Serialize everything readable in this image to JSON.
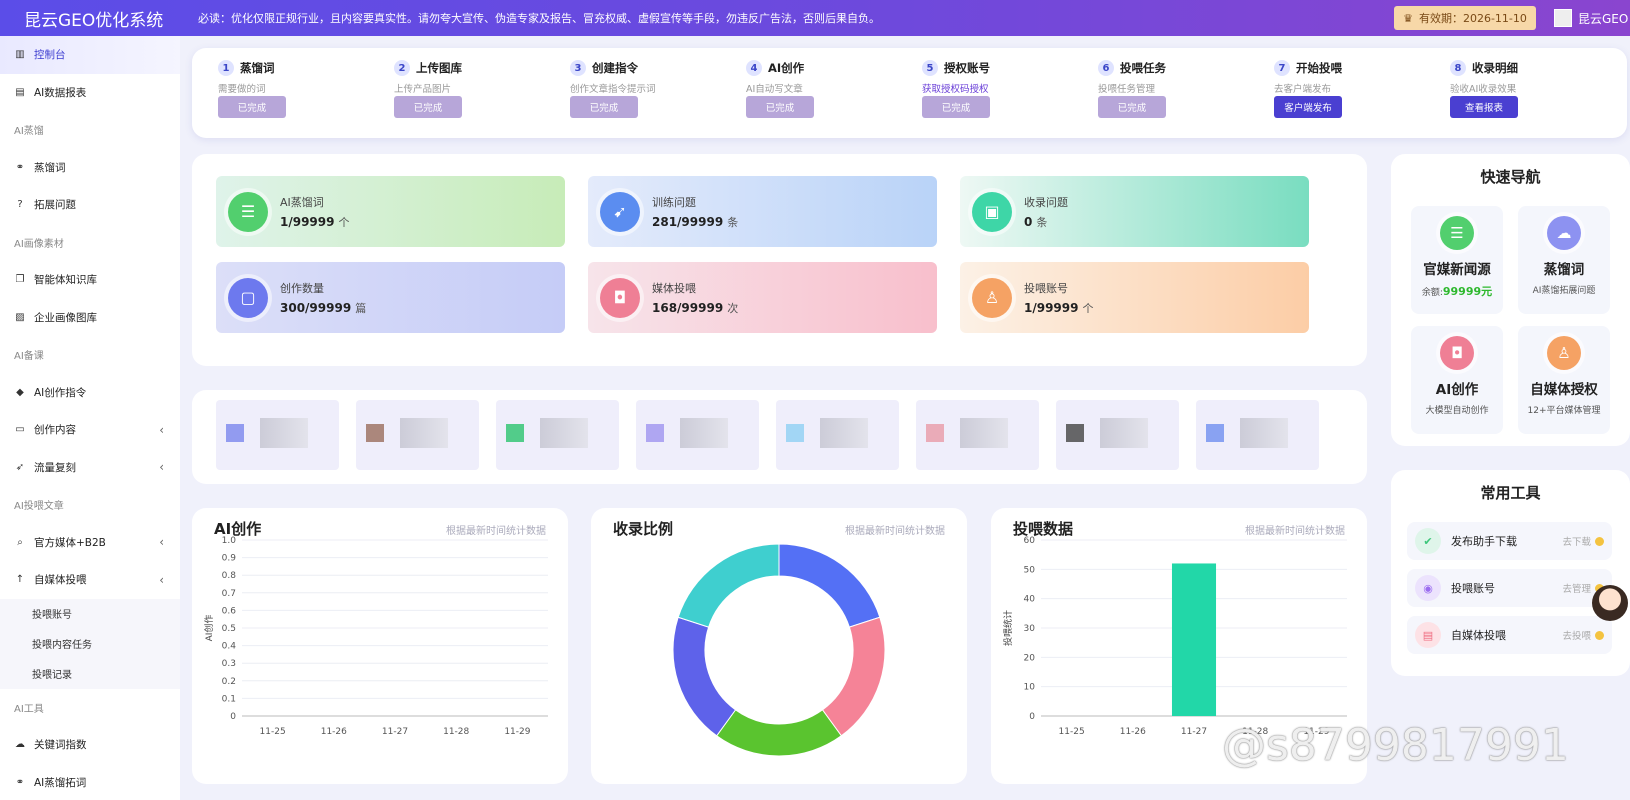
{
  "header": {
    "app_title": "昆云GEO优化系统",
    "notice": "必读：优化仅限正规行业，且内容要真实性。请勿夸大宣传、伪造专家及报告、冒充权威、虚假宣传等手段，勿违反广告法，否则后果自负。",
    "expiry_icon": "crown-icon",
    "expiry": "有效期：2026-11-10",
    "user": "昆云GEO"
  },
  "sidebar": {
    "items": [
      {
        "icon": "chart-icon",
        "label": "控制台",
        "active": true
      },
      {
        "icon": "bar-chart-icon",
        "label": "AI数据报表"
      },
      {
        "group": "AI蒸馏"
      },
      {
        "icon": "link-icon",
        "label": "蒸馏词"
      },
      {
        "icon": "question-icon",
        "label": "拓展问题"
      },
      {
        "group": "AI画像素材"
      },
      {
        "icon": "copy-icon",
        "label": "智能体知识库"
      },
      {
        "icon": "image-icon",
        "label": "企业画像图库"
      },
      {
        "group": "AI备课"
      },
      {
        "icon": "tag-icon",
        "label": "AI创作指令"
      },
      {
        "icon": "folder-icon",
        "label": "创作内容",
        "chevron": "‹"
      },
      {
        "icon": "rocket-icon",
        "label": "流量复刻",
        "chevron": "‹"
      },
      {
        "group": "AI投喂文章"
      },
      {
        "icon": "search-icon",
        "label": "官方媒体+B2B",
        "chevron": "‹"
      },
      {
        "icon": "arrow-up-icon",
        "label": "自媒体投喂",
        "chevron": "‹"
      },
      {
        "sub": "投喂账号"
      },
      {
        "sub": "投喂内容任务"
      },
      {
        "sub": "投喂记录"
      },
      {
        "group": "AI工具"
      },
      {
        "icon": "cloud-icon",
        "label": "关键词指数"
      },
      {
        "icon": "link-icon",
        "label": "AI蒸馏拓词"
      }
    ]
  },
  "steps": [
    {
      "num": "1",
      "title": "蒸馏词",
      "desc": "需要做的词",
      "button": "已完成",
      "primary": false
    },
    {
      "num": "2",
      "title": "上传图库",
      "desc": "上传产品图片",
      "button": "已完成",
      "primary": false
    },
    {
      "num": "3",
      "title": "创建指令",
      "desc": "创作文章指令提示词",
      "button": "已完成",
      "primary": false
    },
    {
      "num": "4",
      "title": "AI创作",
      "desc": "AI自动写文章",
      "button": "已完成",
      "primary": false
    },
    {
      "num": "5",
      "title": "授权账号",
      "desc": "获取授权码授权",
      "desc_link": true,
      "button": "已完成",
      "primary": false
    },
    {
      "num": "6",
      "title": "投喂任务",
      "desc": "投喂任务管理",
      "button": "已完成",
      "primary": false
    },
    {
      "num": "7",
      "title": "开始投喂",
      "desc": "去客户端发布",
      "button": "客户端发布",
      "primary": true
    },
    {
      "num": "8",
      "title": "收录明细",
      "desc": "验收AI收录效果",
      "button": "查看报表",
      "primary": true
    }
  ],
  "stats": [
    {
      "label": "AI蒸馏词",
      "value": "1/99999",
      "unit": "个",
      "icon": "clipboard-icon",
      "color": "#52cf6e",
      "bg": "linear-gradient(90deg,#dff3ea,#c7ecb8)"
    },
    {
      "label": "训练问题",
      "value": "281/99999",
      "unit": "条",
      "icon": "compass-icon",
      "color": "#5b8df0",
      "bg": "linear-gradient(90deg,#e4ebfb,#b9d3f8)"
    },
    {
      "label": "收录问题",
      "value": "0",
      "unit": "条",
      "icon": "wallet-icon",
      "color": "#3ed6a7",
      "bg": "linear-gradient(90deg,#eef8f4,#79ddc0)"
    },
    {
      "label": "创作数量",
      "value": "300/99999",
      "unit": "篇",
      "icon": "window-icon",
      "color": "#6d79ee",
      "bg": "linear-gradient(90deg,#dcdff8,#c5ccf7)"
    },
    {
      "label": "媒体投喂",
      "value": "168/99999",
      "unit": "次",
      "icon": "basket-icon",
      "color": "#ef7f95",
      "bg": "linear-gradient(90deg,#f7e4ea,#f8bfcc)"
    },
    {
      "label": "投喂账号",
      "value": "1/99999",
      "unit": "个",
      "icon": "stamp-icon",
      "color": "#f5a264",
      "bg": "linear-gradient(90deg,#fcf1e6,#fccda6)"
    }
  ],
  "media_platforms": [
    {
      "color": "#7b86ee"
    },
    {
      "color": "#9a6d5c"
    },
    {
      "color": "#2bc36e"
    },
    {
      "color": "#9f93f0"
    },
    {
      "color": "#8fd0f4"
    },
    {
      "color": "#e99aa7"
    },
    {
      "color": "#444"
    },
    {
      "color": "#6f8ff0"
    }
  ],
  "charts": {
    "ai_title": "AI创作",
    "ratio_title": "收录比例",
    "feed_title": "投喂数据",
    "subtitle": "根据最新时间统计数据"
  },
  "chart_data": [
    {
      "type": "line",
      "title": "AI创作",
      "ylabel": "AI创作",
      "categories": [
        "11-25",
        "11-26",
        "11-27",
        "11-28",
        "11-29"
      ],
      "series": [],
      "ylim": [
        0,
        1.0
      ],
      "yticks": [
        "0",
        "0.1",
        "0.2",
        "0.3",
        "0.4",
        "0.5",
        "0.6",
        "0.7",
        "0.8",
        "0.9",
        "1.0"
      ],
      "grid": true
    },
    {
      "type": "pie",
      "title": "收录比例",
      "donut": true,
      "values": [
        20,
        20,
        20,
        20,
        20
      ],
      "colors": [
        "#5470f5",
        "#f58397",
        "#5ac42f",
        "#5e62ea",
        "#3fcfcf"
      ]
    },
    {
      "type": "bar",
      "title": "投喂数据",
      "ylabel": "投喂统计",
      "categories": [
        "11-25",
        "11-26",
        "11-27",
        "11-28",
        "11-29"
      ],
      "values": [
        0,
        0,
        52,
        0,
        0
      ],
      "ylim": [
        0,
        60
      ],
      "yticks": [
        "0",
        "10",
        "20",
        "30",
        "40",
        "50",
        "60"
      ],
      "color": "#22d7a8",
      "grid": true
    }
  ],
  "quick_nav": {
    "title": "快速导航",
    "tiles": [
      {
        "name": "官媒新闻源",
        "desc_prefix": "余额:",
        "desc_value": "99999元",
        "icon": "clipboard-icon",
        "color": "#52cf6e"
      },
      {
        "name": "蒸馏词",
        "desc": "AI蒸馏拓展问题",
        "icon": "cloud-icon",
        "color": "#8d92f1"
      },
      {
        "name": "AI创作",
        "desc": "大模型自动创作",
        "icon": "basket-icon",
        "color": "#ef7f95"
      },
      {
        "name": "自媒体授权",
        "desc": "12+平台媒体管理",
        "icon": "stamp-icon",
        "color": "#f5a264"
      }
    ]
  },
  "tools": {
    "title": "常用工具",
    "items": [
      {
        "name": "发布助手下载",
        "link": "去下载",
        "icon": "check-doc-icon",
        "color": "#3cc67a",
        "bg": "#dff5ea"
      },
      {
        "name": "投喂账号",
        "link": "去管理",
        "icon": "user-icon",
        "color": "#9b6cf0",
        "bg": "#ece3fd"
      },
      {
        "name": "自媒体投喂",
        "link": "去投喂",
        "icon": "doc-icon",
        "color": "#ef6a7f",
        "bg": "#fde2e6"
      }
    ]
  },
  "watermark": "@s8799817991"
}
